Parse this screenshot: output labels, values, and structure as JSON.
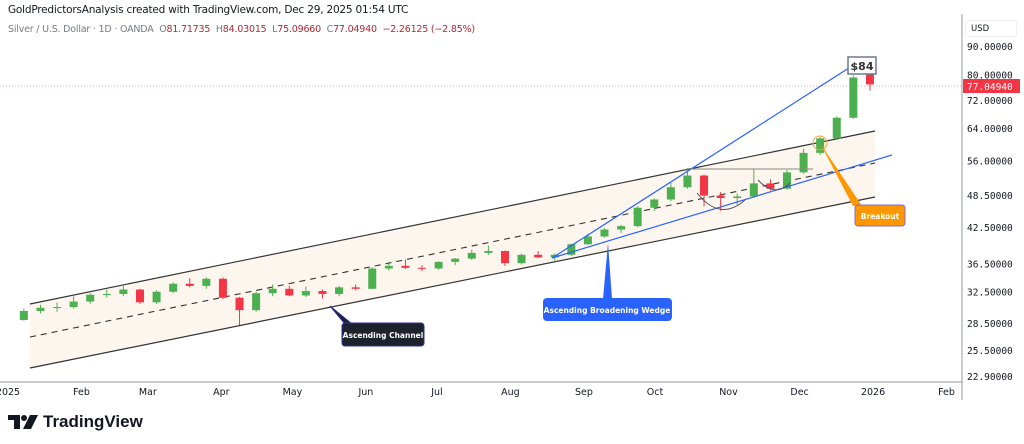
{
  "header": {
    "attribution": "GoldPredictorsAnalysis created with TradingView.com, Dec 29, 2025 01:54 UTC"
  },
  "legend": {
    "symbol": "Silver / U.S. Dollar · 1D · OANDA",
    "open_label": "O",
    "open": "81.71735",
    "high_label": "H",
    "high": "84.03015",
    "low_label": "L",
    "low": "75.09660",
    "close_label": "C",
    "close": "77.04940",
    "change": "−2.26125 (−2.85%)"
  },
  "price_axis": {
    "currency": "USD",
    "last_price_label": "77.04940",
    "last_price_color": "#f23645"
  },
  "annotations": {
    "target": "$84",
    "channel": "Ascending Channel",
    "wedge": "Ascending Broadening Wedge",
    "breakout": "Breakout"
  },
  "branding": {
    "logo_text": "TradingView"
  },
  "chart_data": {
    "type": "candlestick",
    "title": "Silver / U.S. Dollar · 1D · OANDA",
    "yscale": "log",
    "ylim": [
      22.9,
      92
    ],
    "xlim": [
      "2025-01-01",
      "2026-02-15"
    ],
    "grid": false,
    "colors": {
      "up": "#4caf50",
      "down": "#f23645",
      "channel_fill": "#fdf6ee",
      "wedge": "#2962ff"
    },
    "y_ticks": [
      90,
      80,
      72,
      64,
      56,
      48.5,
      42.5,
      36.5,
      32.5,
      28.5,
      25.5,
      22.9
    ],
    "y_tick_labels": [
      "90.00000",
      "80.00000",
      "72.00000",
      "64.00000",
      "56.00000",
      "48.50000",
      "42.50000",
      "36.50000",
      "32.50000",
      "28.50000",
      "25.50000",
      "22.90000"
    ],
    "x_ticks": [
      {
        "date": "2025-01-01",
        "label": "2025"
      },
      {
        "date": "2025-02-01",
        "label": "Feb"
      },
      {
        "date": "2025-03-01",
        "label": "Mar"
      },
      {
        "date": "2025-04-01",
        "label": "Apr"
      },
      {
        "date": "2025-05-01",
        "label": "May"
      },
      {
        "date": "2025-06-01",
        "label": "Jun"
      },
      {
        "date": "2025-07-01",
        "label": "Jul"
      },
      {
        "date": "2025-08-01",
        "label": "Aug"
      },
      {
        "date": "2025-09-01",
        "label": "Sep"
      },
      {
        "date": "2025-10-01",
        "label": "Oct"
      },
      {
        "date": "2025-11-01",
        "label": "Nov"
      },
      {
        "date": "2025-12-01",
        "label": "Dec"
      },
      {
        "date": "2026-01-01",
        "label": "2026"
      },
      {
        "date": "2026-02-01",
        "label": "Feb"
      }
    ],
    "ohlc_columns": [
      "date",
      "open",
      "high",
      "low",
      "close"
    ],
    "ohlc": [
      [
        "2025-01-06",
        29.0,
        30.4,
        28.9,
        30.1
      ],
      [
        "2025-01-13",
        30.1,
        30.9,
        29.8,
        30.5
      ],
      [
        "2025-01-20",
        30.5,
        31.2,
        30.0,
        30.6
      ],
      [
        "2025-01-27",
        30.6,
        32.0,
        30.4,
        31.3
      ],
      [
        "2025-02-03",
        31.3,
        32.4,
        31.0,
        32.2
      ],
      [
        "2025-02-10",
        32.2,
        32.9,
        31.8,
        32.3
      ],
      [
        "2025-02-17",
        32.3,
        33.4,
        32.0,
        32.9
      ],
      [
        "2025-02-24",
        32.9,
        33.0,
        31.0,
        31.2
      ],
      [
        "2025-03-03",
        31.2,
        32.8,
        31.0,
        32.6
      ],
      [
        "2025-03-10",
        32.6,
        33.9,
        32.4,
        33.7
      ],
      [
        "2025-03-17",
        33.7,
        34.5,
        33.2,
        33.4
      ],
      [
        "2025-03-24",
        33.4,
        34.6,
        33.0,
        34.4
      ],
      [
        "2025-03-31",
        34.4,
        34.6,
        31.6,
        31.8
      ],
      [
        "2025-04-07",
        31.8,
        31.9,
        28.4,
        30.2
      ],
      [
        "2025-04-14",
        30.2,
        32.6,
        30.0,
        32.4
      ],
      [
        "2025-04-21",
        32.4,
        33.6,
        32.0,
        33.0
      ],
      [
        "2025-04-28",
        33.0,
        33.4,
        32.0,
        32.1
      ],
      [
        "2025-05-05",
        32.1,
        33.3,
        31.9,
        32.7
      ],
      [
        "2025-05-12",
        32.7,
        32.9,
        31.7,
        32.3
      ],
      [
        "2025-05-19",
        32.3,
        33.4,
        32.0,
        33.2
      ],
      [
        "2025-05-26",
        33.2,
        33.6,
        32.8,
        33.0
      ],
      [
        "2025-06-02",
        33.0,
        36.1,
        33.0,
        35.9
      ],
      [
        "2025-06-09",
        35.9,
        36.9,
        35.6,
        36.3
      ],
      [
        "2025-06-16",
        36.3,
        37.3,
        35.8,
        36.0
      ],
      [
        "2025-06-23",
        36.0,
        36.4,
        35.5,
        35.9
      ],
      [
        "2025-06-30",
        35.9,
        37.0,
        35.7,
        36.9
      ],
      [
        "2025-07-07",
        36.9,
        37.5,
        36.4,
        37.4
      ],
      [
        "2025-07-14",
        37.4,
        38.8,
        37.2,
        38.3
      ],
      [
        "2025-07-21",
        38.3,
        39.5,
        38.0,
        38.6
      ],
      [
        "2025-07-28",
        38.6,
        38.7,
        36.3,
        36.7
      ],
      [
        "2025-08-04",
        36.7,
        38.2,
        36.5,
        38.0
      ],
      [
        "2025-08-11",
        38.0,
        38.6,
        37.5,
        37.6
      ],
      [
        "2025-08-18",
        37.6,
        38.2,
        37.1,
        38.0
      ],
      [
        "2025-08-25",
        38.0,
        39.8,
        37.8,
        39.7
      ],
      [
        "2025-09-01",
        39.7,
        41.5,
        39.6,
        41.0
      ],
      [
        "2025-09-08",
        41.0,
        42.5,
        40.8,
        42.2
      ],
      [
        "2025-09-15",
        42.2,
        43.0,
        41.6,
        42.8
      ],
      [
        "2025-09-22",
        42.8,
        46.5,
        42.6,
        46.2
      ],
      [
        "2025-09-29",
        46.2,
        48.0,
        45.6,
        47.8
      ],
      [
        "2025-10-06",
        47.8,
        51.2,
        47.5,
        50.3
      ],
      [
        "2025-10-13",
        50.3,
        54.5,
        50.0,
        52.8
      ],
      [
        "2025-10-20",
        52.8,
        53.0,
        46.5,
        48.6
      ],
      [
        "2025-10-27",
        48.6,
        49.3,
        45.6,
        48.1
      ],
      [
        "2025-11-03",
        48.1,
        49.0,
        46.8,
        48.4
      ],
      [
        "2025-11-10",
        48.4,
        54.2,
        48.2,
        51.1
      ],
      [
        "2025-11-17",
        51.1,
        52.0,
        49.6,
        50.0
      ],
      [
        "2025-11-24",
        50.0,
        54.0,
        49.8,
        53.5
      ],
      [
        "2025-12-01",
        53.5,
        59.0,
        53.2,
        58.0
      ],
      [
        "2025-12-08",
        58.0,
        62.0,
        57.5,
        61.6
      ],
      [
        "2025-12-15",
        61.6,
        67.5,
        61.2,
        67.1
      ],
      [
        "2025-12-22",
        67.1,
        80.0,
        66.8,
        79.3
      ],
      [
        "2025-12-29",
        81.71735,
        84.03015,
        75.0966,
        77.0494
      ]
    ],
    "last_price": 77.0494
  }
}
